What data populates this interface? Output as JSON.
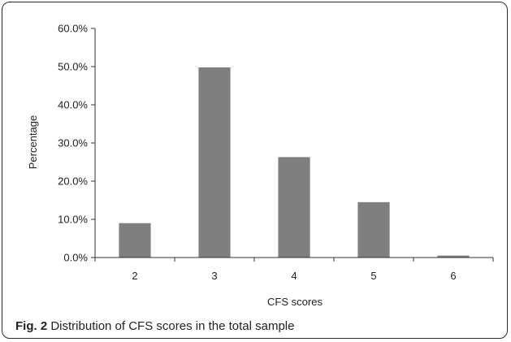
{
  "chart_data": {
    "type": "bar",
    "categories": [
      "2",
      "3",
      "4",
      "5",
      "6"
    ],
    "values": [
      9.0,
      49.8,
      26.3,
      14.5,
      0.5
    ],
    "xlabel": "CFS scores",
    "ylabel": "Percentage",
    "ylim": [
      0,
      60
    ],
    "yticks": [
      "0.0%",
      "10.0%",
      "20.0%",
      "30.0%",
      "40.0%",
      "50.0%",
      "60.0%"
    ],
    "bar_color": "#7f7f7f",
    "grid": false
  },
  "caption": {
    "label": "Fig. 2",
    "text": "Distribution of CFS scores in the total sample"
  }
}
